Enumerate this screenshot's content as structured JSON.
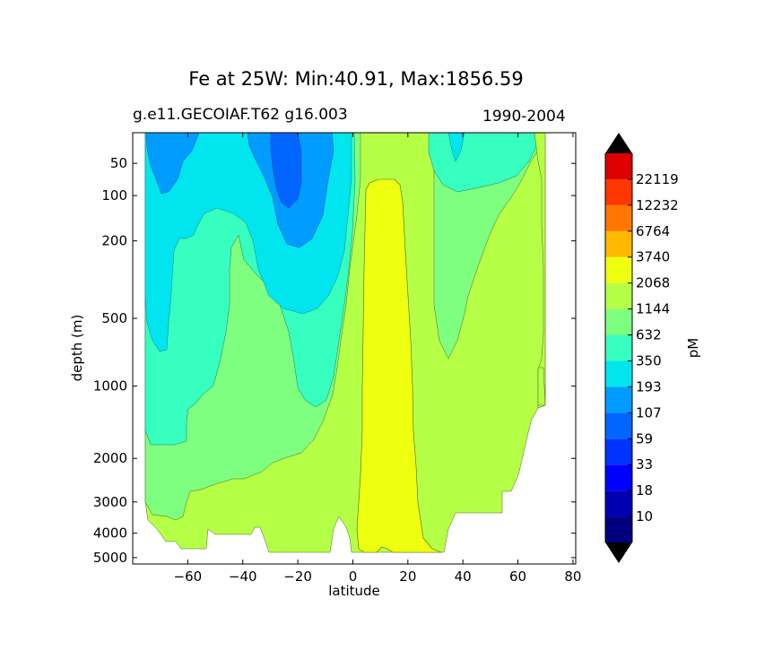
{
  "chart_data": {
    "type": "filled-contour",
    "title": "Fe at 25W: Min:40.91, Max:1856.59",
    "subtitle_left": "g.e11.GECOIAF.T62 g16.003",
    "subtitle_right": "1990-2004",
    "xlabel": "latitude",
    "ylabel": "depth (m)",
    "xlim": [
      -80,
      81
    ],
    "ylim_depth": [
      5300,
      14
    ],
    "yscale": "symlog",
    "x_ticks": [
      -60,
      -40,
      -20,
      0,
      20,
      40,
      60,
      80
    ],
    "x_tick_labels": [
      "−60",
      "−40",
      "−20",
      "0",
      "20",
      "40",
      "60",
      "80"
    ],
    "y_ticks": [
      50,
      100,
      200,
      500,
      1000,
      2000,
      3000,
      4000,
      5000
    ],
    "y_tick_labels": [
      "50",
      "100",
      "200",
      "500",
      "1000",
      "2000",
      "3000",
      "4000",
      "5000"
    ],
    "colorbar": {
      "label": "pM",
      "levels": [
        10,
        18,
        33,
        59,
        107,
        193,
        350,
        632,
        1144,
        2068,
        3740,
        6764,
        12232,
        22119
      ],
      "level_labels": [
        "10",
        "18",
        "33",
        "59",
        "107",
        "193",
        "350",
        "632",
        "1144",
        "2068",
        "3740",
        "6764",
        "12232",
        "22119"
      ],
      "under_color": "#000000",
      "over_color": "#000000",
      "colors": [
        "#00007f",
        "#0000b2",
        "#0000ff",
        "#0033ff",
        "#0066ff",
        "#009cff",
        "#00e5ee",
        "#37ffbf",
        "#7fff7f",
        "#b6ff47",
        "#eeff0f",
        "#ffb900",
        "#ff7700",
        "#ff3600",
        "#dd0000",
        "#7f0000"
      ]
    },
    "value_range": {
      "min": 40.91,
      "max": 1856.59
    },
    "fields": [
      {
        "name": "deep-ocean 632-1144 band",
        "level_range": [
          632,
          1144
        ],
        "color": "#b6ff47"
      },
      {
        "name": "equatorial 1144-2068 core",
        "level_range": [
          1144,
          2068
        ],
        "color": "#eeff0f"
      },
      {
        "name": "350-632 band",
        "level_range": [
          350,
          632
        ],
        "color": "#7fff7f"
      },
      {
        "name": "193-350 band",
        "level_range": [
          193,
          350
        ],
        "color": "#37ffbf"
      },
      {
        "name": "107-193 band",
        "level_range": [
          107,
          193
        ],
        "color": "#00e5ee"
      },
      {
        "name": "59-107 band",
        "level_range": [
          59,
          107
        ],
        "color": "#009cff"
      },
      {
        "name": "33-59 minimum",
        "level_range": [
          33,
          59
        ],
        "color": "#0066ff"
      }
    ]
  }
}
